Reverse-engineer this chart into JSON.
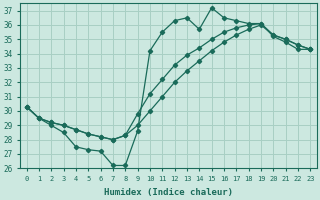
{
  "xlabel": "Humidex (Indice chaleur)",
  "bg_color": "#cce8e0",
  "grid_color": "#a8cfc4",
  "line_color": "#1a6b5a",
  "xlim": [
    -0.5,
    23.5
  ],
  "ylim": [
    26,
    37.5
  ],
  "xticks": [
    0,
    1,
    2,
    3,
    4,
    5,
    6,
    7,
    8,
    9,
    10,
    11,
    12,
    13,
    14,
    15,
    16,
    17,
    18,
    19,
    20,
    21,
    22,
    23
  ],
  "yticks": [
    26,
    27,
    28,
    29,
    30,
    31,
    32,
    33,
    34,
    35,
    36,
    37
  ],
  "line1_x": [
    0,
    1,
    2,
    3,
    4,
    5,
    6,
    7,
    8,
    9,
    10,
    11,
    12,
    13,
    14,
    15,
    16,
    17,
    18,
    19,
    20,
    21,
    22,
    23
  ],
  "line1_y": [
    30.3,
    29.5,
    29.2,
    29.0,
    28.7,
    28.4,
    28.2,
    28.0,
    28.3,
    29.0,
    30.0,
    31.0,
    32.0,
    32.8,
    33.5,
    34.2,
    34.8,
    35.3,
    35.7,
    36.0,
    35.3,
    35.0,
    34.6,
    34.3
  ],
  "line2_x": [
    0,
    1,
    2,
    3,
    4,
    5,
    6,
    7,
    8,
    9,
    10,
    11,
    12,
    13,
    14,
    15,
    16,
    17,
    18,
    19,
    20,
    21,
    22,
    23
  ],
  "line2_y": [
    30.3,
    29.5,
    29.2,
    29.0,
    28.7,
    28.4,
    28.2,
    28.0,
    28.3,
    29.8,
    31.2,
    32.2,
    33.2,
    33.9,
    34.4,
    35.0,
    35.5,
    35.8,
    36.0,
    36.1,
    35.3,
    35.0,
    34.6,
    34.3
  ],
  "line3_x": [
    0,
    1,
    2,
    3,
    4,
    5,
    6,
    7,
    8,
    9,
    10,
    11,
    12,
    13,
    14,
    15,
    16,
    17,
    18,
    19,
    20,
    21,
    22,
    23
  ],
  "line3_y": [
    30.3,
    29.5,
    29.0,
    28.5,
    27.5,
    27.3,
    27.2,
    26.2,
    26.2,
    28.6,
    34.2,
    35.5,
    36.3,
    36.5,
    35.7,
    37.2,
    36.5,
    36.3,
    36.1,
    36.1,
    35.2,
    34.8,
    34.3,
    34.3
  ]
}
